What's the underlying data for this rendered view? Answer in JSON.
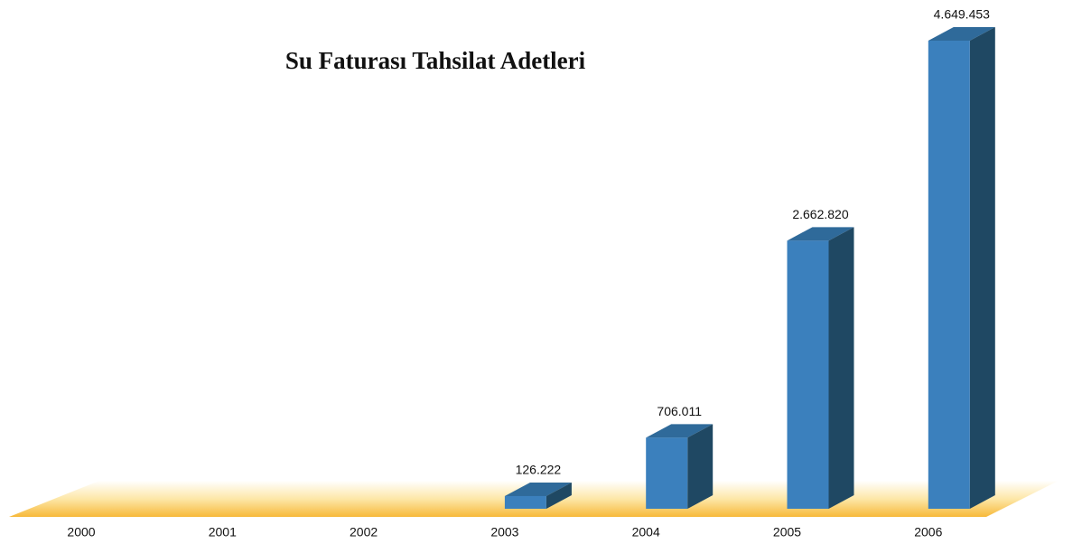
{
  "chart_data": {
    "type": "bar3d",
    "title": "Su Faturası Tahsilat Adetleri",
    "categories": [
      "2000",
      "2001",
      "2002",
      "2003",
      "2004",
      "2005",
      "2006"
    ],
    "values": [
      null,
      null,
      null,
      126222,
      706011,
      2662820,
      4649453
    ],
    "value_labels": [
      null,
      null,
      null,
      "126.222",
      "706.011",
      "2.662.820",
      "4.649.453"
    ],
    "color": "#3b80bd"
  }
}
